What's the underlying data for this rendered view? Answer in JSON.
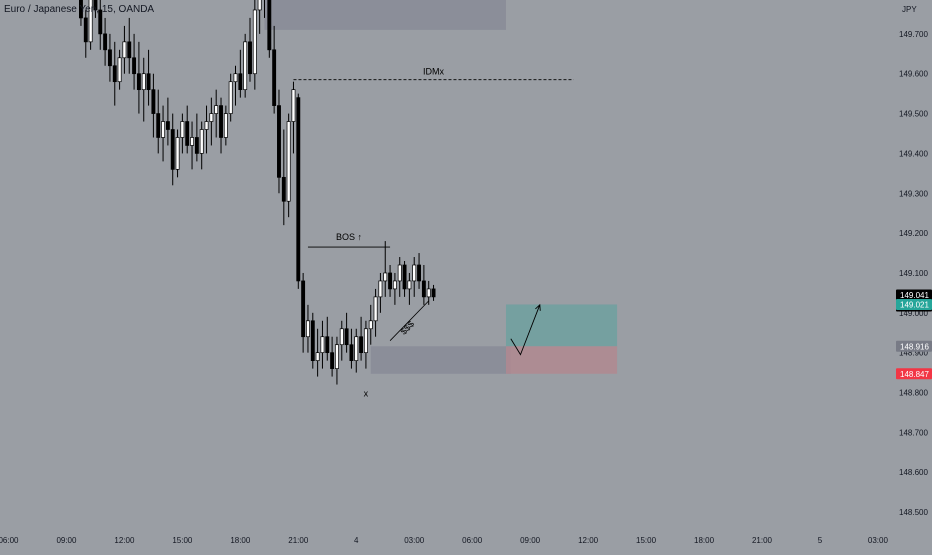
{
  "symbol_title": "Euro / Japanese Yen, 15, OANDA",
  "colors": {
    "background": "#9a9ea4",
    "candle_body_up": "#ffffff",
    "candle_body_down": "#000000",
    "wick": "#000000",
    "zone": "#8a8c98",
    "target_zone": "#6fa0a0",
    "stop_zone": "#b08890",
    "price_label_dark": "#000000",
    "price_label_green": "#26a69a",
    "price_label_gray": "#787b86",
    "price_label_red": "#f23645"
  },
  "chart_data": {
    "type": "candlestick",
    "currency_label": "JPY",
    "ylim": [
      148.46,
      149.785
    ],
    "y_ticks": [
      "149.700",
      "149.600",
      "149.500",
      "149.400",
      "149.300",
      "149.200",
      "149.100",
      "149.000",
      "148.900",
      "148.800",
      "148.700",
      "148.600",
      "148.500"
    ],
    "x_ticks": [
      "06:00",
      "09:00",
      "12:00",
      "15:00",
      "18:00",
      "21:00",
      "4",
      "03:00",
      "06:00",
      "09:00",
      "12:00",
      "15:00",
      "18:00",
      "21:00",
      "5",
      "03:00"
    ],
    "bars_per_tick": 12,
    "candles": [
      [
        149.84,
        149.88,
        149.72,
        149.74
      ],
      [
        149.74,
        149.76,
        149.64,
        149.68
      ],
      [
        149.68,
        149.82,
        149.66,
        149.8
      ],
      [
        149.8,
        149.86,
        149.74,
        149.76
      ],
      [
        149.76,
        149.8,
        149.66,
        149.7
      ],
      [
        149.7,
        149.74,
        149.62,
        149.66
      ],
      [
        149.66,
        149.7,
        149.58,
        149.62
      ],
      [
        149.62,
        149.68,
        149.52,
        149.58
      ],
      [
        149.58,
        149.66,
        149.56,
        149.64
      ],
      [
        149.64,
        149.72,
        149.6,
        149.68
      ],
      [
        149.68,
        149.74,
        149.6,
        149.64
      ],
      [
        149.64,
        149.7,
        149.56,
        149.6
      ],
      [
        149.6,
        149.68,
        149.5,
        149.56
      ],
      [
        149.56,
        149.64,
        149.48,
        149.6
      ],
      [
        149.6,
        149.66,
        149.52,
        149.56
      ],
      [
        149.56,
        149.6,
        149.44,
        149.5
      ],
      [
        149.5,
        149.56,
        149.4,
        149.44
      ],
      [
        149.44,
        149.52,
        149.38,
        149.48
      ],
      [
        149.48,
        149.54,
        149.42,
        149.46
      ],
      [
        149.46,
        149.5,
        149.32,
        149.36
      ],
      [
        149.36,
        149.46,
        149.34,
        149.44
      ],
      [
        149.44,
        149.5,
        149.4,
        149.48
      ],
      [
        149.48,
        149.52,
        149.4,
        149.42
      ],
      [
        149.42,
        149.48,
        149.36,
        149.44
      ],
      [
        149.44,
        149.5,
        149.38,
        149.4
      ],
      [
        149.4,
        149.48,
        149.36,
        149.46
      ],
      [
        149.46,
        149.52,
        149.4,
        149.48
      ],
      [
        149.48,
        149.54,
        149.42,
        149.5
      ],
      [
        149.5,
        149.56,
        149.44,
        149.52
      ],
      [
        149.52,
        149.54,
        149.4,
        149.44
      ],
      [
        149.44,
        149.52,
        149.42,
        149.5
      ],
      [
        149.5,
        149.6,
        149.48,
        149.58
      ],
      [
        149.58,
        149.62,
        149.52,
        149.6
      ],
      [
        149.6,
        149.66,
        149.54,
        149.56
      ],
      [
        149.56,
        149.7,
        149.54,
        149.68
      ],
      [
        149.68,
        149.74,
        149.58,
        149.6
      ],
      [
        149.6,
        149.8,
        149.56,
        149.76
      ],
      [
        149.76,
        149.85,
        149.7,
        149.82
      ],
      [
        149.82,
        149.88,
        149.74,
        149.8
      ],
      [
        149.8,
        149.84,
        149.64,
        149.66
      ],
      [
        149.66,
        149.72,
        149.5,
        149.52
      ],
      [
        149.52,
        149.56,
        149.3,
        149.34
      ],
      [
        149.34,
        149.46,
        149.22,
        149.28
      ],
      [
        149.28,
        149.5,
        149.24,
        149.48
      ],
      [
        149.48,
        149.58,
        149.4,
        149.56
      ],
      [
        149.54,
        149.55,
        149.06,
        149.08
      ],
      [
        149.08,
        149.1,
        148.9,
        148.94
      ],
      [
        148.94,
        149.02,
        148.9,
        148.98
      ],
      [
        148.98,
        149.0,
        148.86,
        148.88
      ],
      [
        148.88,
        148.96,
        148.84,
        148.9
      ],
      [
        148.9,
        148.98,
        148.86,
        148.94
      ],
      [
        148.94,
        148.99,
        148.88,
        148.9
      ],
      [
        148.9,
        148.94,
        148.84,
        148.86
      ],
      [
        148.86,
        148.94,
        148.82,
        148.92
      ],
      [
        148.92,
        148.98,
        148.88,
        148.96
      ],
      [
        148.96,
        149.0,
        148.9,
        148.92
      ],
      [
        148.92,
        148.96,
        148.86,
        148.88
      ],
      [
        148.88,
        148.96,
        148.85,
        148.94
      ],
      [
        148.94,
        148.99,
        148.88,
        148.9
      ],
      [
        148.9,
        148.98,
        148.86,
        148.96
      ],
      [
        148.96,
        149.02,
        148.92,
        148.98
      ],
      [
        148.98,
        149.06,
        148.94,
        149.04
      ],
      [
        149.04,
        149.1,
        149.0,
        149.08
      ],
      [
        149.08,
        149.18,
        149.04,
        149.1
      ],
      [
        149.1,
        149.12,
        149.04,
        149.06
      ],
      [
        149.06,
        149.1,
        149.02,
        149.08
      ],
      [
        149.08,
        149.14,
        149.04,
        149.12
      ],
      [
        149.12,
        149.13,
        149.04,
        149.06
      ],
      [
        149.06,
        149.1,
        149.02,
        149.08
      ],
      [
        149.08,
        149.14,
        149.04,
        149.12
      ],
      [
        149.12,
        149.15,
        149.06,
        149.08
      ],
      [
        149.08,
        149.12,
        149.02,
        149.04
      ],
      [
        149.04,
        149.08,
        149.02,
        149.06
      ],
      [
        149.06,
        149.07,
        149.03,
        149.04
      ]
    ],
    "first_candle_index": 15,
    "price_labels": [
      {
        "value": 149.041,
        "text": "149.041",
        "countdown": "11:28",
        "style": "price_label_dark"
      },
      {
        "value": 149.021,
        "text": "149.021",
        "style": "price_label_green"
      },
      {
        "value": 148.916,
        "text": "148.916",
        "style": "price_label_gray"
      },
      {
        "value": 148.847,
        "text": "148.847",
        "style": "price_label_red"
      }
    ],
    "annotations": {
      "idm": {
        "label": "IDMx",
        "price": 149.585,
        "from_bar": 59,
        "to_bar": 117
      },
      "bos": {
        "label": "BOS ↑",
        "price": 149.165,
        "from_bar": 62,
        "to_bar": 79
      },
      "liquidity": {
        "label": "$$$",
        "from": [
          79,
          148.93
        ],
        "to": [
          87,
          149.03
        ]
      },
      "low_marker": {
        "label": "x",
        "bar": 74,
        "price": 148.82
      },
      "supply_zone": {
        "from_bar": 53,
        "to_bar": 103,
        "top": 149.8,
        "bottom": 149.71
      },
      "demand_zone": {
        "from_bar": 75,
        "to_bar": 104,
        "top": 148.916,
        "bottom": 148.847
      },
      "position": {
        "from_bar": 103,
        "to_bar": 126,
        "entry": 148.916,
        "target": 149.021,
        "stop": 148.847
      },
      "projection": [
        [
          104,
          148.935
        ],
        [
          106,
          148.895
        ],
        [
          110,
          149.02
        ]
      ]
    }
  }
}
